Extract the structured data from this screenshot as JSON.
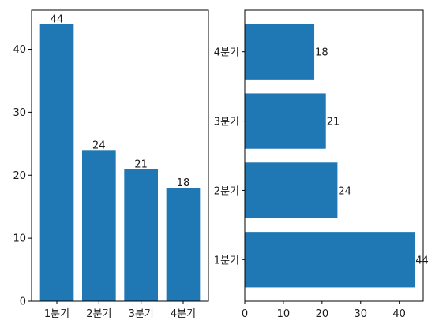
{
  "chart_data": [
    {
      "type": "bar",
      "orientation": "vertical",
      "categories": [
        "1분기",
        "2분기",
        "3분기",
        "4분기"
      ],
      "values": [
        44,
        24,
        21,
        18
      ],
      "ylim": [
        0,
        46.2
      ],
      "yticks": [
        0,
        10,
        20,
        30,
        40
      ],
      "bar_color": "#1f77b4",
      "data_labels": true,
      "grid": false
    },
    {
      "type": "bar",
      "orientation": "horizontal",
      "categories": [
        "1분기",
        "2분기",
        "3분기",
        "4분기"
      ],
      "values": [
        44,
        24,
        21,
        18
      ],
      "xlim": [
        0,
        46.2
      ],
      "xticks": [
        0,
        10,
        20,
        30,
        40
      ],
      "bar_color": "#1f77b4",
      "data_labels": true,
      "grid": false
    }
  ]
}
